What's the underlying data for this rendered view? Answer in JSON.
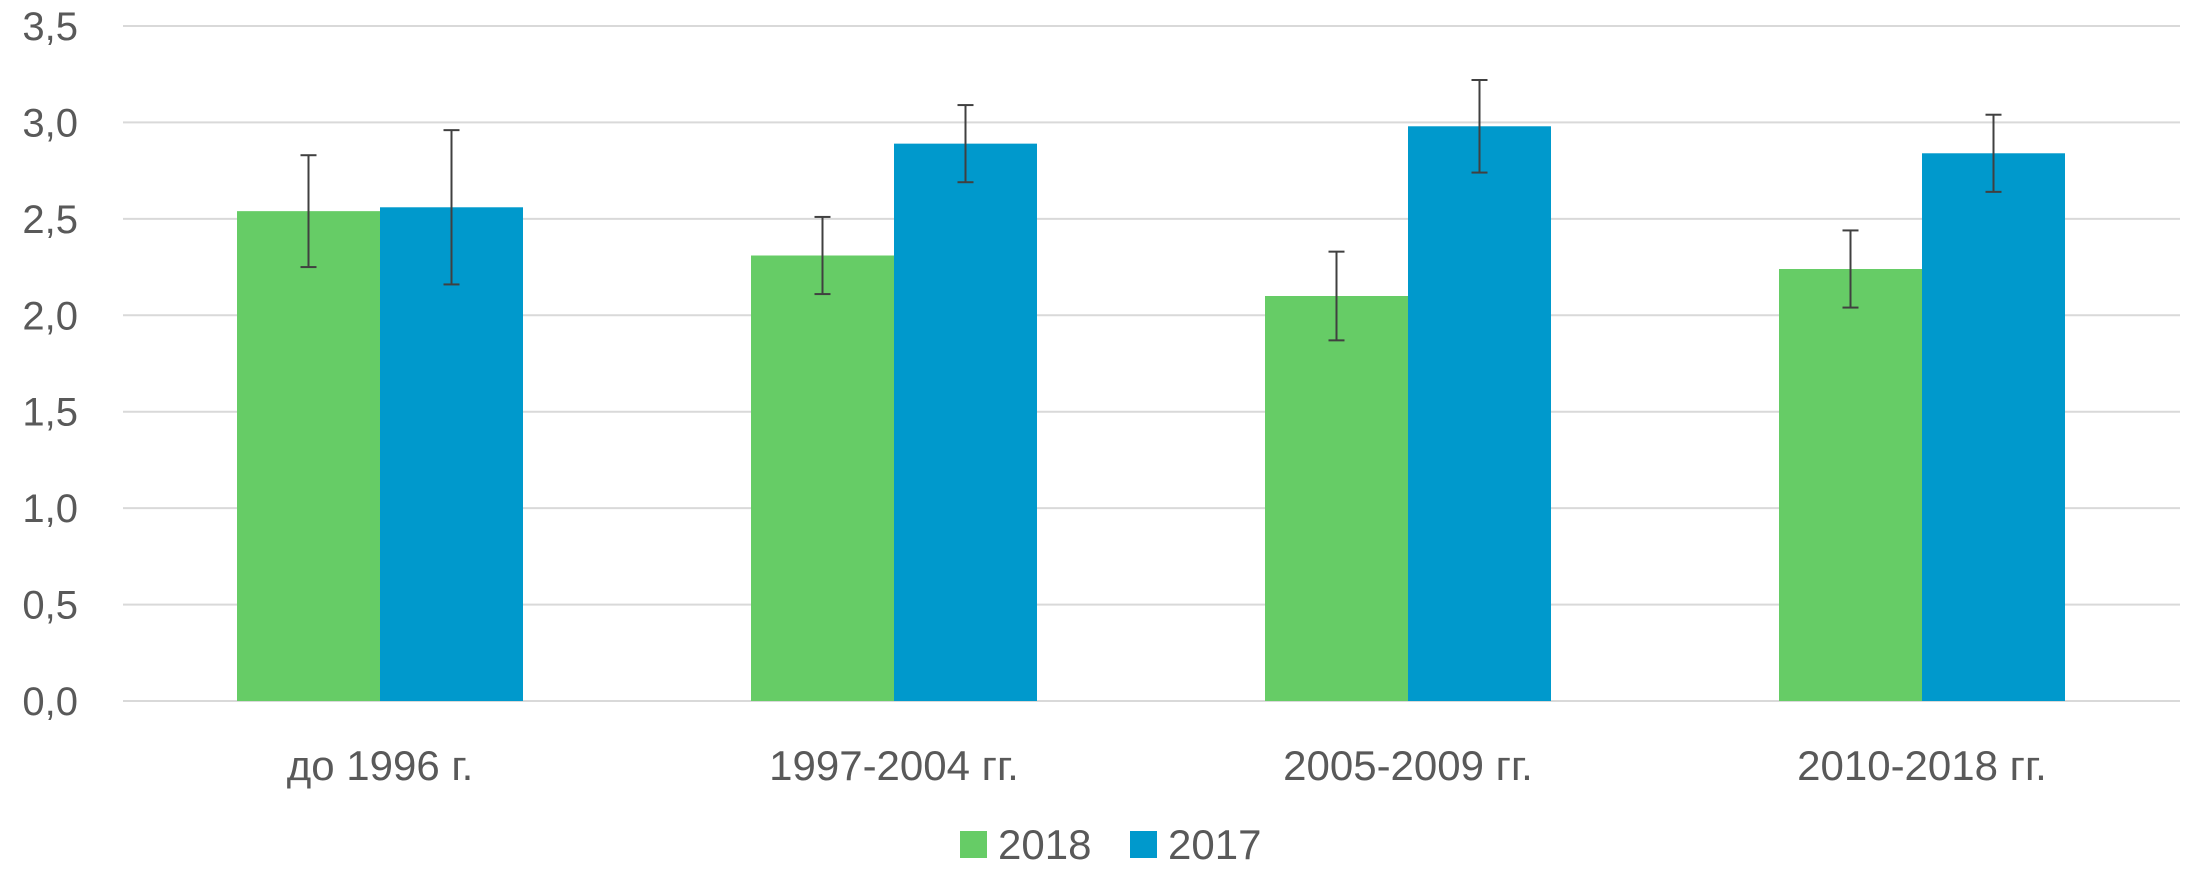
{
  "chart_data": {
    "type": "bar",
    "title": "",
    "xlabel": "",
    "ylabel": "",
    "ylim": [
      0,
      3.5
    ],
    "yticks": [
      "0,0",
      "0,5",
      "1,0",
      "1,5",
      "2,0",
      "2,5",
      "3,0",
      "3,5"
    ],
    "ytick_values": [
      0,
      0.5,
      1.0,
      1.5,
      2.0,
      2.5,
      3.0,
      3.5
    ],
    "categories": [
      "до 1996 г.",
      "1997-2004 гг.",
      "2005-2009 гг.",
      "2010-2018 гг."
    ],
    "series": [
      {
        "name": "2018",
        "color": "#66cc66",
        "values": [
          2.54,
          2.31,
          2.1,
          2.24
        ],
        "error": [
          0.29,
          0.2,
          0.23,
          0.2
        ]
      },
      {
        "name": "2017",
        "color": "#0099cc",
        "values": [
          2.56,
          2.89,
          2.98,
          2.84
        ],
        "error": [
          0.4,
          0.2,
          0.24,
          0.2
        ]
      }
    ],
    "grid": true,
    "legend": "bottom-center"
  }
}
